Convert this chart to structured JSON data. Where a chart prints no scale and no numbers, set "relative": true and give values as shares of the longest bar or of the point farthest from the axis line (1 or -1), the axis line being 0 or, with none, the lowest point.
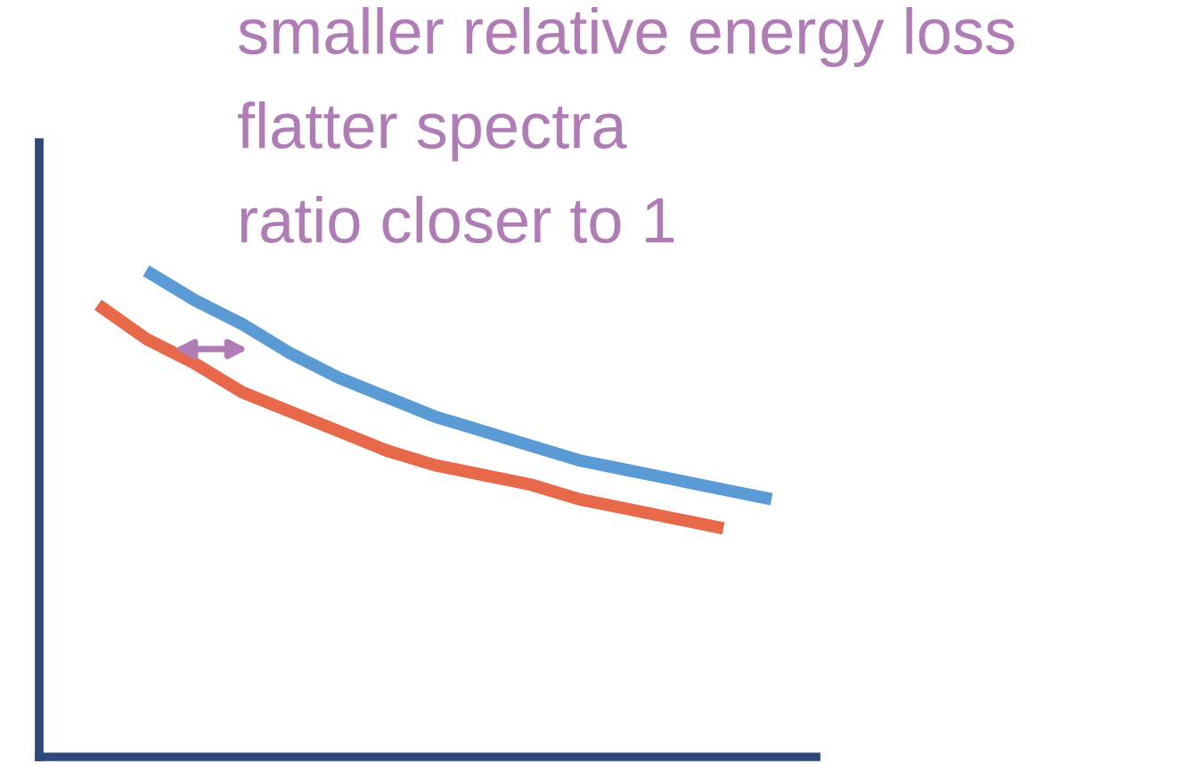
{
  "chart_data": {
    "type": "line",
    "relative": true,
    "tick_labels": false,
    "marker": "none",
    "line_style": "solid",
    "categories": [
      null,
      null,
      null,
      null,
      null,
      null,
      null,
      null,
      null,
      null,
      null,
      null,
      null,
      null,
      null
    ],
    "series": [
      {
        "color": "#5b9bd5",
        "values": [
          null,
          1.0,
          0.94,
          0.89,
          0.83,
          0.78,
          0.74,
          0.7,
          0.67,
          0.64,
          0.61,
          0.59,
          0.57,
          0.55,
          0.53
        ]
      },
      {
        "color": "#e8694a",
        "values": [
          0.93,
          0.86,
          0.81,
          0.75,
          0.71,
          0.67,
          0.63,
          0.6,
          0.58,
          0.56,
          0.53,
          0.51,
          0.49,
          0.47,
          null
        ]
      }
    ],
    "annotations": [
      "smaller relative energy loss",
      "flatter spectra",
      "ratio closer to 1"
    ]
  }
}
